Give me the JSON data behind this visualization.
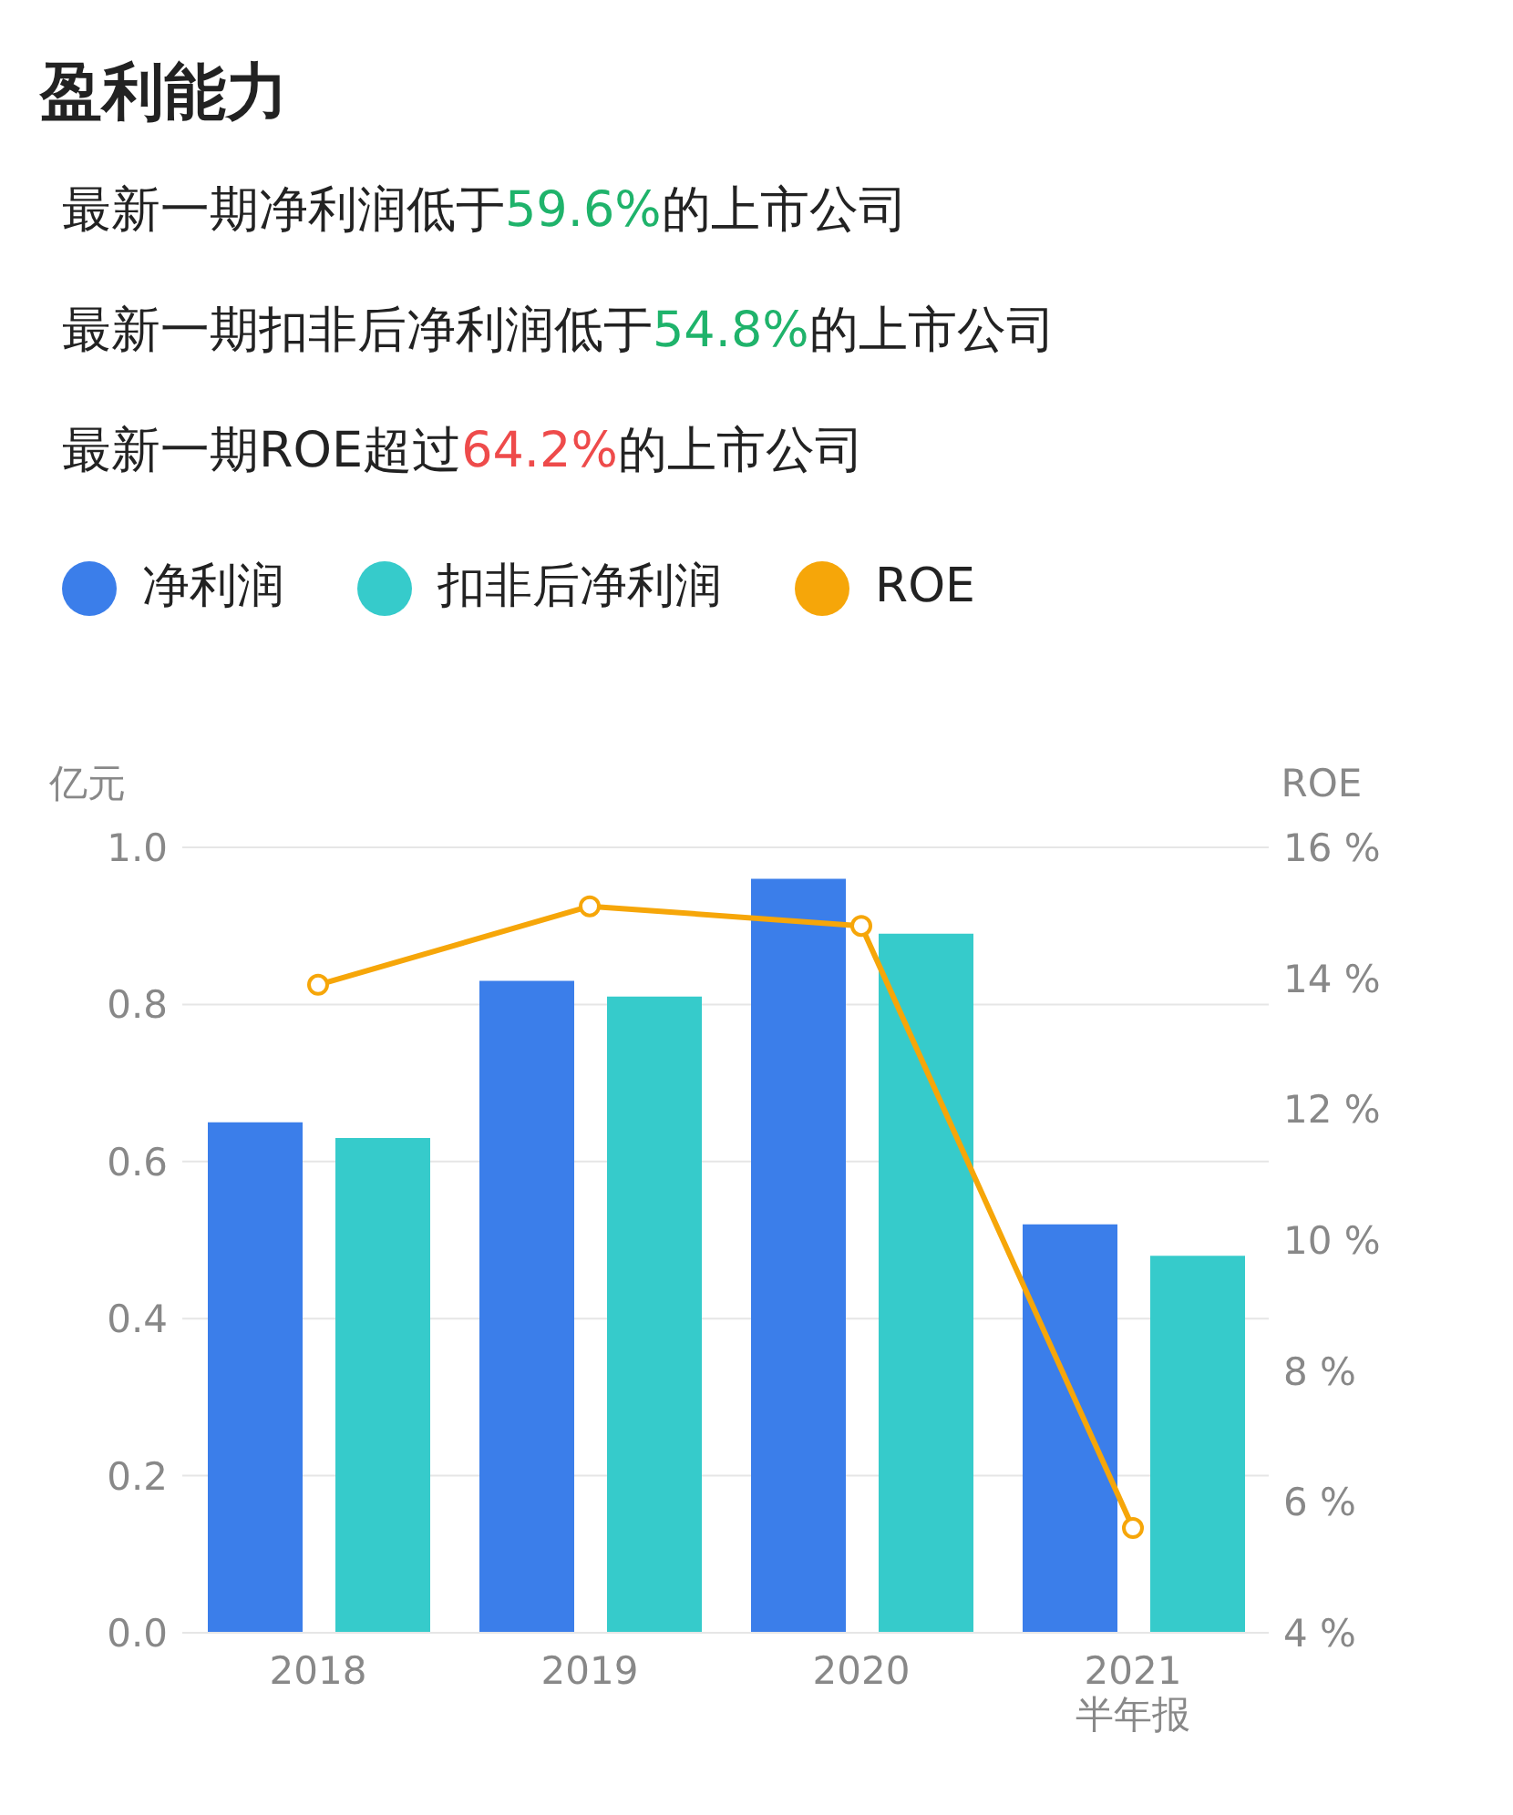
{
  "chart_data": {
    "type": "bar",
    "title": "盈利能力",
    "annotations": [
      "最新一期净利润低于59.6%的上市公司",
      "最新一期扣非后净利润低于54.8%的上市公司",
      "最新一期ROE超过64.2%的上市公司"
    ],
    "categories": [
      "2018",
      "2019",
      "2020",
      "2021\n半年报"
    ],
    "series": [
      {
        "name": "净利润",
        "color": "#3b7eea",
        "values": [
          0.65,
          0.83,
          0.96,
          0.52
        ]
      },
      {
        "name": "扣非后净利润",
        "color": "#36cbcb",
        "values": [
          0.63,
          0.81,
          0.89,
          0.48
        ]
      },
      {
        "name": "ROE",
        "type": "line",
        "axis": "y2",
        "color": "#f6a609",
        "marker": "circle",
        "values": [
          13.9,
          15.1,
          14.8,
          5.6
        ]
      }
    ],
    "ylabel": "亿元",
    "y2label": "ROE",
    "ylim": [
      0,
      1.0
    ],
    "yticks": [
      {
        "value": 0,
        "label": "0.0"
      },
      0.2,
      0.4,
      0.6,
      0.8,
      {
        "value": 1,
        "label": "1.0"
      }
    ],
    "y2lim": [
      4,
      16
    ],
    "y2ticks": [
      {
        "value": 4,
        "label": "4 %"
      },
      {
        "value": 6,
        "label": "6 %"
      },
      {
        "value": 8,
        "label": "8 %"
      },
      {
        "value": 10,
        "label": "10 %"
      },
      {
        "value": 12,
        "label": "12 %"
      },
      {
        "value": 14,
        "label": "14 %"
      },
      {
        "value": 16,
        "label": "16 %"
      }
    ],
    "grid": "y",
    "legend": "top"
  }
}
